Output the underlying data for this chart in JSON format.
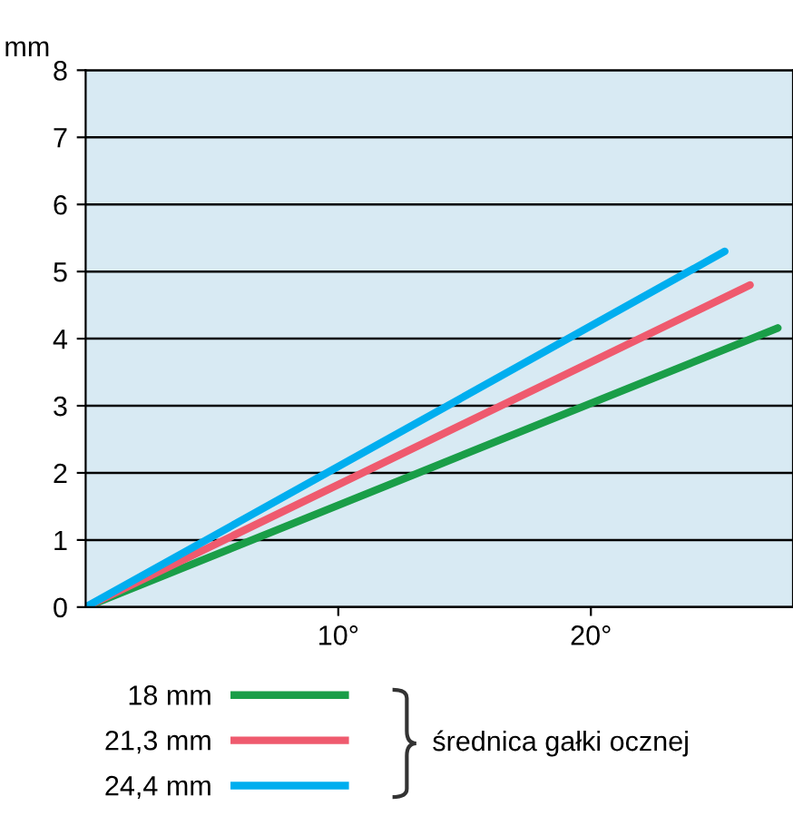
{
  "chart_data": {
    "type": "line",
    "ylabel": "mm",
    "legend_title": "średnica gałki ocznej",
    "xlim": [
      0,
      28
    ],
    "ylim": [
      0,
      8
    ],
    "xticks": [
      {
        "value": 10,
        "label": "10°"
      },
      {
        "value": 20,
        "label": "20°"
      }
    ],
    "yticks": [
      0,
      1,
      2,
      3,
      4,
      5,
      6,
      7,
      8
    ],
    "grid": "y",
    "legend": "bottom",
    "marker": "none",
    "line_style": "solid",
    "series": [
      {
        "name": "18 mm",
        "color": "#1a9e48",
        "x": [
          0,
          27.4
        ],
        "values": [
          0,
          4.16
        ]
      },
      {
        "name": "21,3 mm",
        "color": "#ef5a6e",
        "x": [
          0,
          26.3
        ],
        "values": [
          0,
          4.8
        ]
      },
      {
        "name": "24,4 mm",
        "color": "#00aeef",
        "x": [
          0,
          25.3
        ],
        "values": [
          0,
          5.3
        ]
      }
    ]
  }
}
